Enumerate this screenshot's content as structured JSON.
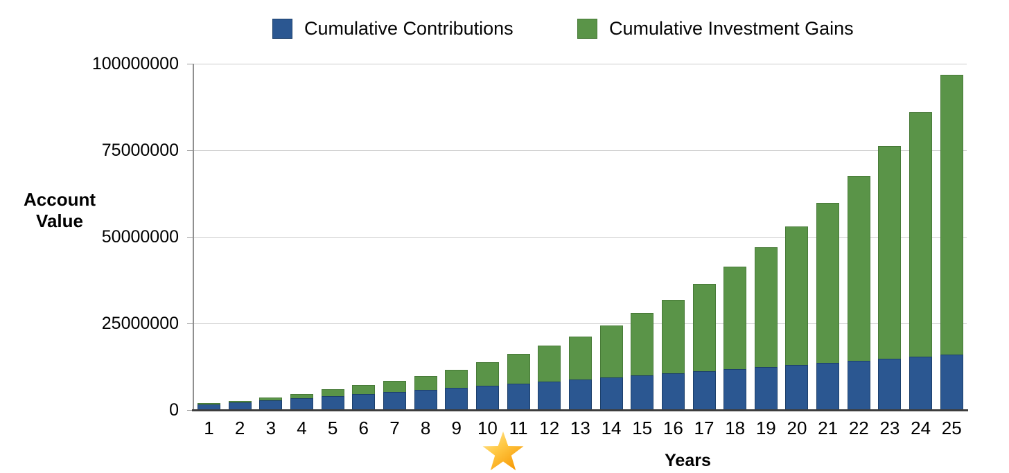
{
  "legend": {
    "items": [
      {
        "label": "Cumulative Contributions",
        "color": "#2b5791"
      },
      {
        "label": "Cumulative Investment Gains",
        "color": "#5a9448"
      }
    ]
  },
  "chart_data": {
    "type": "bar",
    "subtype": "stacked",
    "title": "",
    "xlabel": "Years",
    "ylabel": "Account Value",
    "ylim": [
      0,
      100000000
    ],
    "yticks": [
      0,
      25000000,
      50000000,
      75000000,
      100000000
    ],
    "grid": "horizontal",
    "legend_position": "top-center",
    "years": [
      1,
      2,
      3,
      4,
      5,
      6,
      7,
      8,
      9,
      10,
      11,
      12,
      13,
      14,
      15,
      16,
      17,
      18,
      19,
      20,
      21,
      22,
      23,
      24,
      25
    ],
    "series": [
      {
        "name": "Cumulative Contributions",
        "color": "#2b5791",
        "values": [
          1500000,
          2100000,
          2700000,
          3300000,
          3900000,
          4500000,
          5100000,
          5700000,
          6300000,
          6900000,
          7500000,
          8100000,
          8700000,
          9300000,
          9900000,
          10500000,
          11100000,
          11700000,
          12300000,
          12900000,
          13500000,
          14100000,
          14700000,
          15300000,
          15900000
        ]
      },
      {
        "name": "Cumulative Investment Gains",
        "color": "#5a9448",
        "values": [
          300000,
          400000,
          800000,
          1100000,
          1900000,
          2500000,
          3100000,
          4000000,
          5100000,
          6700000,
          8500000,
          10300000,
          12400000,
          14900000,
          17900000,
          21200000,
          25100000,
          29500000,
          34500000,
          39900000,
          46100000,
          53400000,
          61400000,
          70600000,
          80800000
        ]
      }
    ],
    "totals": [
      1800000,
      2500000,
      3500000,
      4400000,
      5800000,
      7000000,
      8200000,
      9700000,
      11400000,
      13600000,
      16000000,
      18400000,
      21100000,
      24200000,
      27800000,
      31700000,
      36200000,
      41200000,
      46800000,
      52800000,
      59600000,
      67500000,
      76100000,
      85900000,
      96700000
    ],
    "annotations": [
      {
        "marker": "star",
        "color_top": "#ffe9a3",
        "color_mid": "#ffc843",
        "color_bottom": "#f69500",
        "position": "below x-axis between year 10 and year 11"
      }
    ]
  }
}
